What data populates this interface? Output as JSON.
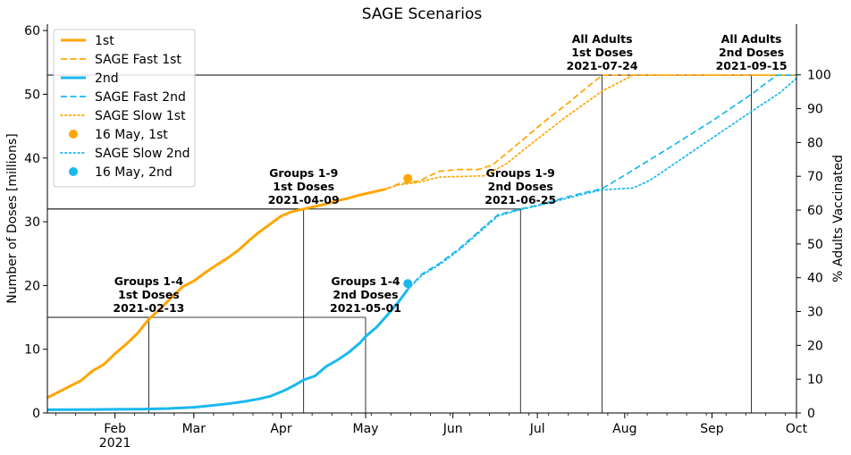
{
  "chart_data": {
    "type": "line",
    "title": "SAGE Scenarios",
    "ylabel": "Number of Doses [millions]",
    "ylabel_right": "% Adults Vaccinated",
    "xlim": [
      "2021-01-08",
      "2021-10-01"
    ],
    "ylim": [
      0,
      61
    ],
    "ylim_right": [
      0,
      115
    ],
    "full_doses_millions": 53,
    "x_ticks": [
      {
        "date": "2021-02-01",
        "label": "Feb",
        "sublabel": "2021"
      },
      {
        "date": "2021-03-01",
        "label": "Mar",
        "sublabel": ""
      },
      {
        "date": "2021-04-01",
        "label": "Apr",
        "sublabel": ""
      },
      {
        "date": "2021-05-01",
        "label": "May",
        "sublabel": ""
      },
      {
        "date": "2021-06-01",
        "label": "Jun",
        "sublabel": ""
      },
      {
        "date": "2021-07-01",
        "label": "Jul",
        "sublabel": ""
      },
      {
        "date": "2021-08-01",
        "label": "Aug",
        "sublabel": ""
      },
      {
        "date": "2021-09-01",
        "label": "Sep",
        "sublabel": ""
      },
      {
        "date": "2021-10-01",
        "label": "Oct",
        "sublabel": ""
      }
    ],
    "y_ticks": [
      0,
      10,
      20,
      30,
      40,
      50,
      60
    ],
    "y_ticks_right": [
      0,
      10,
      20,
      30,
      40,
      50,
      60,
      70,
      80,
      90,
      100
    ],
    "legend": {
      "placement": "upper-left",
      "entries": [
        "1st",
        "SAGE Fast 1st",
        "2nd",
        "SAGE Fast 2nd",
        "SAGE Slow 1st",
        "16 May, 1st",
        "SAGE Slow 2nd",
        "16 May, 2nd"
      ]
    },
    "colors": {
      "first": "#FFA500",
      "second": "#1AB8F0"
    },
    "series": [
      {
        "name": "1st",
        "style": "solid",
        "color": "#FFA500",
        "points": [
          [
            "2021-01-08",
            2.4
          ],
          [
            "2021-01-12",
            3.3
          ],
          [
            "2021-01-16",
            4.2
          ],
          [
            "2021-01-20",
            5.1
          ],
          [
            "2021-01-24",
            6.6
          ],
          [
            "2021-01-28",
            7.6
          ],
          [
            "2021-02-01",
            9.3
          ],
          [
            "2021-02-05",
            10.8
          ],
          [
            "2021-02-09",
            12.5
          ],
          [
            "2021-02-13",
            14.7
          ],
          [
            "2021-02-17",
            16.3
          ],
          [
            "2021-02-21",
            18.1
          ],
          [
            "2021-02-25",
            19.8
          ],
          [
            "2021-03-01",
            20.7
          ],
          [
            "2021-03-05",
            22.0
          ],
          [
            "2021-03-09",
            23.2
          ],
          [
            "2021-03-13",
            24.3
          ],
          [
            "2021-03-17",
            25.6
          ],
          [
            "2021-03-21",
            27.2
          ],
          [
            "2021-03-24",
            28.3
          ],
          [
            "2021-03-28",
            29.6
          ],
          [
            "2021-04-01",
            30.9
          ],
          [
            "2021-04-05",
            31.6
          ],
          [
            "2021-04-09",
            32.0
          ],
          [
            "2021-04-13",
            32.4
          ],
          [
            "2021-04-17",
            32.8
          ],
          [
            "2021-04-21",
            33.3
          ],
          [
            "2021-04-25",
            33.7
          ],
          [
            "2021-04-29",
            34.2
          ],
          [
            "2021-05-03",
            34.6
          ],
          [
            "2021-05-08",
            35.1
          ]
        ]
      },
      {
        "name": "SAGE Fast 1st",
        "style": "dashed",
        "color": "#FFA500",
        "points": [
          [
            "2021-05-08",
            35.1
          ],
          [
            "2021-05-13",
            36.0
          ],
          [
            "2021-05-20",
            36.4
          ],
          [
            "2021-05-27",
            37.9
          ],
          [
            "2021-06-03",
            38.2
          ],
          [
            "2021-06-10",
            38.2
          ],
          [
            "2021-06-15",
            38.9
          ],
          [
            "2021-06-20",
            40.7
          ],
          [
            "2021-06-27",
            43.3
          ],
          [
            "2021-07-04",
            45.9
          ],
          [
            "2021-07-11",
            48.3
          ],
          [
            "2021-07-17",
            50.5
          ],
          [
            "2021-07-24",
            53.0
          ],
          [
            "2021-10-01",
            53.0
          ]
        ]
      },
      {
        "name": "SAGE Slow 1st",
        "style": "dotted",
        "color": "#FFA500",
        "points": [
          [
            "2021-05-08",
            35.1
          ],
          [
            "2021-05-13",
            35.8
          ],
          [
            "2021-05-20",
            36.2
          ],
          [
            "2021-05-27",
            37.0
          ],
          [
            "2021-06-03",
            37.1
          ],
          [
            "2021-06-12",
            37.2
          ],
          [
            "2021-06-20",
            39.1
          ],
          [
            "2021-06-27",
            41.6
          ],
          [
            "2021-07-04",
            44.0
          ],
          [
            "2021-07-11",
            46.4
          ],
          [
            "2021-07-18",
            48.6
          ],
          [
            "2021-07-24",
            50.5
          ],
          [
            "2021-08-04",
            53.0
          ],
          [
            "2021-10-01",
            53.0
          ]
        ]
      },
      {
        "name": "2nd",
        "style": "solid",
        "color": "#1AB8F0",
        "points": [
          [
            "2021-01-08",
            0.5
          ],
          [
            "2021-01-25",
            0.55
          ],
          [
            "2021-02-10",
            0.6
          ],
          [
            "2021-02-20",
            0.7
          ],
          [
            "2021-03-01",
            0.9
          ],
          [
            "2021-03-08",
            1.2
          ],
          [
            "2021-03-14",
            1.5
          ],
          [
            "2021-03-19",
            1.8
          ],
          [
            "2021-03-24",
            2.2
          ],
          [
            "2021-03-28",
            2.6
          ],
          [
            "2021-04-02",
            3.5
          ],
          [
            "2021-04-06",
            4.4
          ],
          [
            "2021-04-09",
            5.2
          ],
          [
            "2021-04-13",
            5.8
          ],
          [
            "2021-04-17",
            7.3
          ],
          [
            "2021-04-21",
            8.3
          ],
          [
            "2021-04-25",
            9.5
          ],
          [
            "2021-04-29",
            11.0
          ],
          [
            "2021-05-01",
            12.0
          ],
          [
            "2021-05-05",
            13.5
          ],
          [
            "2021-05-09",
            15.5
          ],
          [
            "2021-05-13",
            17.6
          ],
          [
            "2021-05-16",
            19.4
          ]
        ]
      },
      {
        "name": "SAGE Fast 2nd",
        "style": "dashed",
        "color": "#1AB8F0",
        "points": [
          [
            "2021-05-16",
            19.4
          ],
          [
            "2021-05-21",
            21.8
          ],
          [
            "2021-05-27",
            23.4
          ],
          [
            "2021-06-03",
            25.7
          ],
          [
            "2021-06-10",
            28.4
          ],
          [
            "2021-06-17",
            31.1
          ],
          [
            "2021-06-25",
            32.0
          ],
          [
            "2021-07-03",
            32.8
          ],
          [
            "2021-07-10",
            33.7
          ],
          [
            "2021-07-17",
            34.5
          ],
          [
            "2021-07-24",
            35.2
          ],
          [
            "2021-08-01",
            37.3
          ],
          [
            "2021-08-15",
            41.1
          ],
          [
            "2021-09-01",
            45.8
          ],
          [
            "2021-09-15",
            50.0
          ],
          [
            "2021-09-24",
            53.0
          ],
          [
            "2021-10-01",
            53.0
          ]
        ]
      },
      {
        "name": "SAGE Slow 2nd",
        "style": "dotted",
        "color": "#1AB8F0",
        "points": [
          [
            "2021-05-16",
            19.4
          ],
          [
            "2021-05-21",
            21.6
          ],
          [
            "2021-05-27",
            23.2
          ],
          [
            "2021-06-03",
            25.5
          ],
          [
            "2021-06-10",
            28.2
          ],
          [
            "2021-06-17",
            30.9
          ],
          [
            "2021-06-25",
            31.9
          ],
          [
            "2021-07-03",
            32.7
          ],
          [
            "2021-07-10",
            33.5
          ],
          [
            "2021-07-17",
            34.3
          ],
          [
            "2021-07-24",
            35.0
          ],
          [
            "2021-08-04",
            35.3
          ],
          [
            "2021-08-10",
            36.5
          ],
          [
            "2021-08-20",
            39.5
          ],
          [
            "2021-09-01",
            43.1
          ],
          [
            "2021-09-15",
            47.3
          ],
          [
            "2021-09-25",
            50.2
          ],
          [
            "2021-10-01",
            52.5
          ]
        ]
      }
    ],
    "markers": [
      {
        "name": "16 May, 1st",
        "date": "2021-05-16",
        "value": 36.8,
        "color": "#FFA500"
      },
      {
        "name": "16 May, 2nd",
        "date": "2021-05-16",
        "value": 20.3,
        "color": "#1AB8F0"
      }
    ],
    "milestones": [
      {
        "date": "2021-02-13",
        "value": 15.0,
        "lines": [
          "Groups 1-4",
          "1st Doses",
          "2021-02-13"
        ]
      },
      {
        "date": "2021-04-09",
        "value": 32.0,
        "lines": [
          "Groups 1-9",
          "1st Doses",
          "2021-04-09"
        ]
      },
      {
        "date": "2021-05-01",
        "value": 15.0,
        "lines": [
          "Groups 1-4",
          "2nd Doses",
          "2021-05-01"
        ]
      },
      {
        "date": "2021-06-25",
        "value": 32.0,
        "lines": [
          "Groups 1-9",
          "2nd Doses",
          "2021-06-25"
        ]
      },
      {
        "date": "2021-07-24",
        "value": 53.0,
        "lines": [
          "All Adults",
          "1st Doses",
          "2021-07-24"
        ]
      },
      {
        "date": "2021-09-15",
        "value": 53.0,
        "lines": [
          "All Adults",
          "2nd Doses",
          "2021-09-15"
        ]
      }
    ]
  }
}
